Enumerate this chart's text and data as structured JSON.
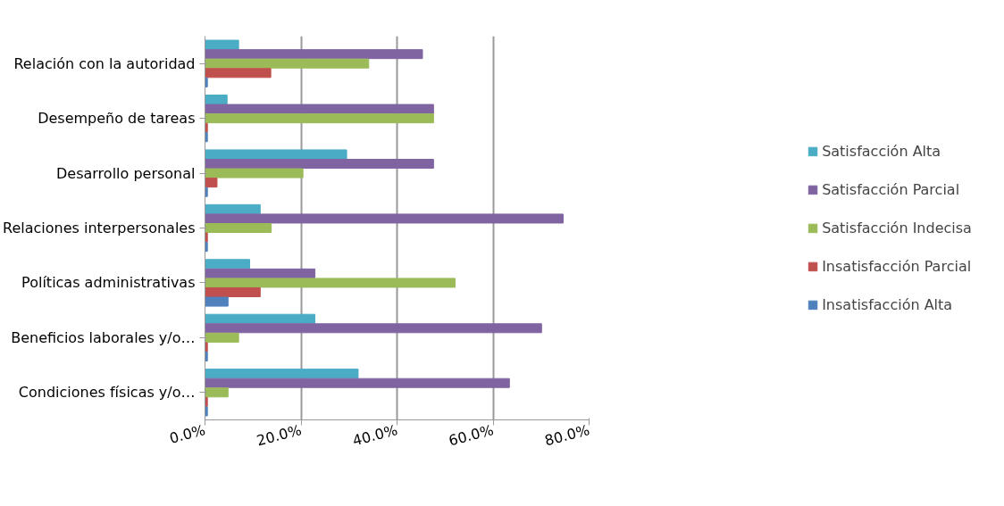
{
  "chart_data": {
    "type": "bar",
    "orientation": "horizontal",
    "categories": [
      "Relación con la autoridad",
      "Desempeño de tareas",
      "Desarrollo personal",
      "Relaciones interpersonales",
      "Políticas administrativas",
      "Beneficios laborales y/o…",
      "Condiciones físicas y/o…"
    ],
    "series": [
      {
        "name": "Satisfacción Alta",
        "color": "#4bacc6",
        "values": [
          7.0,
          4.6,
          29.5,
          11.5,
          9.3,
          22.9,
          31.9
        ]
      },
      {
        "name": "Satisfacción Parcial",
        "color": "#8064a2",
        "values": [
          45.3,
          47.6,
          47.6,
          74.6,
          22.9,
          70.1,
          63.4
        ]
      },
      {
        "name": "Satisfacción Indecisa",
        "color": "#9bbb59",
        "values": [
          34.1,
          47.6,
          20.4,
          13.8,
          52.1,
          7.0,
          4.8
        ]
      },
      {
        "name": "Insatisfacción Parcial",
        "color": "#c0504d",
        "values": [
          13.7,
          0.5,
          2.5,
          0.5,
          11.5,
          0.5,
          0.5
        ]
      },
      {
        "name": "Insatisfacción Alta",
        "color": "#4f81bd",
        "values": [
          0.5,
          0.5,
          0.5,
          0.5,
          4.8,
          0.5,
          0.5
        ]
      }
    ],
    "xlim": [
      0,
      80
    ],
    "xticks": [
      {
        "value": 0,
        "label": "0.0%"
      },
      {
        "value": 20,
        "label": "20.0%"
      },
      {
        "value": 40,
        "label": "40.0%"
      },
      {
        "value": 60,
        "label": "60.0%"
      },
      {
        "value": 80,
        "label": "80.0%"
      }
    ],
    "grid": "x",
    "legend": "right"
  }
}
